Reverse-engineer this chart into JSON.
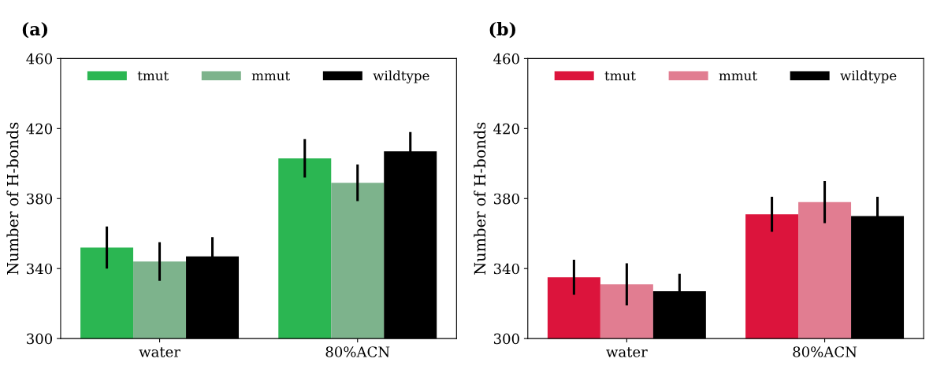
{
  "chart_data": [
    {
      "type": "bar",
      "title": "(a)",
      "ylabel": "Number of H-bonds",
      "categories": [
        "water",
        "80%ACN"
      ],
      "ylim": [
        300,
        460
      ],
      "yticks": [
        300,
        340,
        380,
        420,
        460
      ],
      "legend": "top",
      "grid": false,
      "series": [
        {
          "name": "tmut",
          "color": "#2bb652",
          "values": [
            352,
            403
          ],
          "errors": [
            12,
            11
          ]
        },
        {
          "name": "mmut",
          "color": "#7db38c",
          "values": [
            344,
            389
          ],
          "errors": [
            11,
            10.5
          ]
        },
        {
          "name": "wildtype",
          "color": "#000000",
          "values": [
            347,
            407
          ],
          "errors": [
            11,
            11
          ]
        }
      ]
    },
    {
      "type": "bar",
      "title": "(b)",
      "ylabel": "Number of H-bonds",
      "categories": [
        "water",
        "80%ACN"
      ],
      "ylim": [
        300,
        460
      ],
      "yticks": [
        300,
        340,
        380,
        420,
        460
      ],
      "legend": "top",
      "grid": false,
      "series": [
        {
          "name": "tmut",
          "color": "#dc143c",
          "values": [
            335,
            371
          ],
          "errors": [
            10,
            10
          ]
        },
        {
          "name": "mmut",
          "color": "#e17d91",
          "values": [
            331,
            378
          ],
          "errors": [
            12,
            12
          ]
        },
        {
          "name": "wildtype",
          "color": "#000000",
          "values": [
            327,
            370
          ],
          "errors": [
            10,
            11
          ]
        }
      ]
    }
  ]
}
